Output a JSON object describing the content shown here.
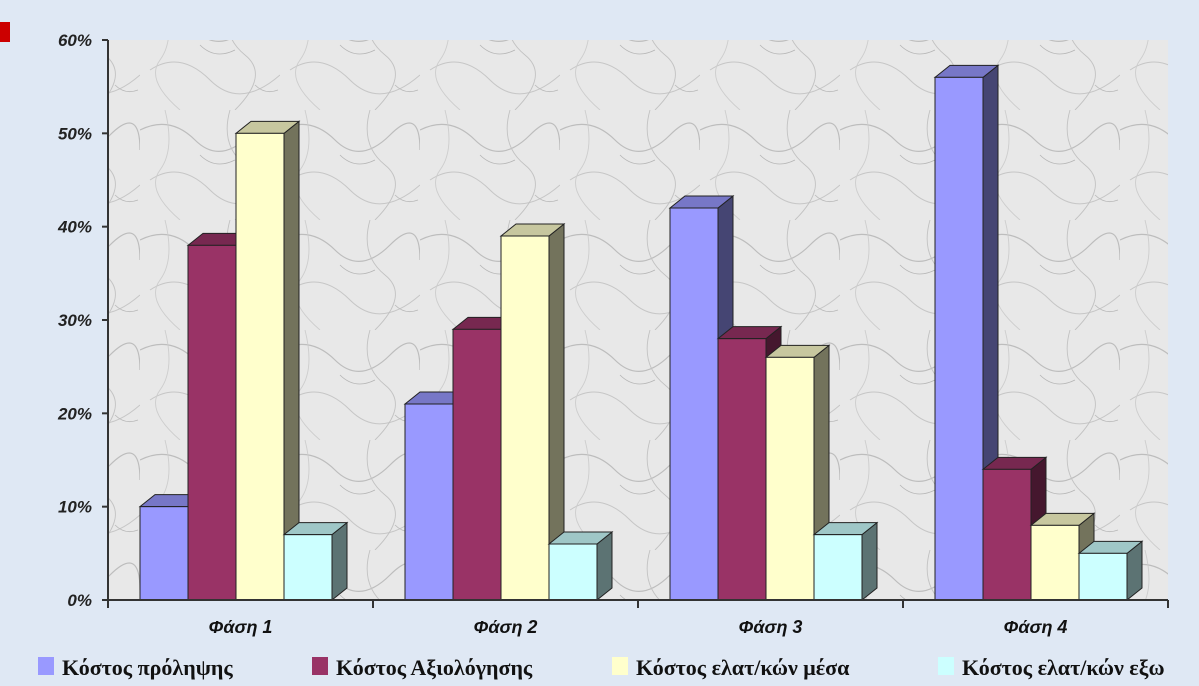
{
  "chart_data": {
    "type": "bar",
    "title": "",
    "xlabel": "",
    "ylabel": "",
    "categories": [
      "Φάση 1",
      "Φάση 2",
      "Φάση 3",
      "Φάση 4"
    ],
    "ylim": [
      0,
      60
    ],
    "yticks": [
      "0%",
      "10%",
      "20%",
      "30%",
      "40%",
      "50%",
      "60%"
    ],
    "grid": false,
    "legend_position": "bottom",
    "series": [
      {
        "name": "Κόστος πρόληψης",
        "values": [
          10,
          21,
          42,
          56
        ],
        "color": "#9999ff"
      },
      {
        "name": "Κόστος Αξιολόγησης",
        "values": [
          38,
          29,
          28,
          14
        ],
        "color": "#993366"
      },
      {
        "name": "Κόστος ελατ/κών μέσα",
        "values": [
          50,
          39,
          26,
          8
        ],
        "color": "#ffffcc"
      },
      {
        "name": "Κόστος ελατ/κών εξω",
        "values": [
          7,
          6,
          7,
          5
        ],
        "color": "#ccffff"
      }
    ]
  }
}
